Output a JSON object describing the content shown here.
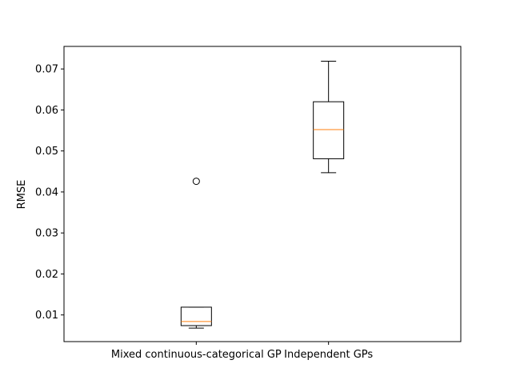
{
  "chart_data": {
    "type": "box",
    "title": "",
    "xlabel": "",
    "ylabel": "RMSE",
    "ylim": [
      0.0035,
      0.0755
    ],
    "yticks": [
      0.01,
      0.02,
      0.03,
      0.04,
      0.05,
      0.06,
      0.07
    ],
    "grid": false,
    "colors": {
      "box": "#000000",
      "median": "#ff7f0e"
    },
    "categories": [
      "Mixed continuous-categorical GP",
      "Independent GPs"
    ],
    "boxes": [
      {
        "whisker_low": 0.0068,
        "q1": 0.0074,
        "median": 0.0084,
        "q3": 0.0119,
        "whisker_high": 0.0119,
        "outliers": [
          0.0426
        ]
      },
      {
        "whisker_low": 0.0447,
        "q1": 0.0481,
        "median": 0.0552,
        "q3": 0.062,
        "whisker_high": 0.0719,
        "outliers": []
      }
    ]
  }
}
